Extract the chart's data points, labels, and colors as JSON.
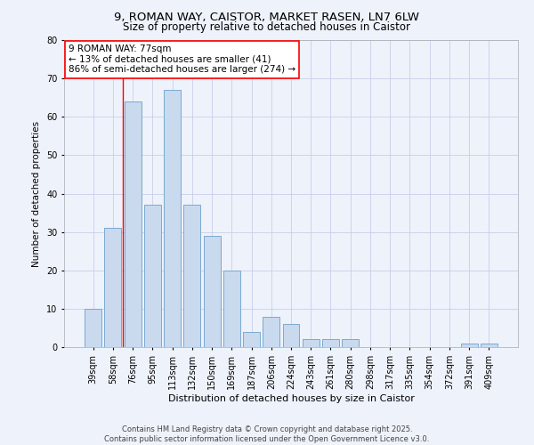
{
  "title_line1": "9, ROMAN WAY, CAISTOR, MARKET RASEN, LN7 6LW",
  "title_line2": "Size of property relative to detached houses in Caistor",
  "xlabel": "Distribution of detached houses by size in Caistor",
  "ylabel": "Number of detached properties",
  "categories": [
    "39sqm",
    "58sqm",
    "76sqm",
    "95sqm",
    "113sqm",
    "132sqm",
    "150sqm",
    "169sqm",
    "187sqm",
    "206sqm",
    "224sqm",
    "243sqm",
    "261sqm",
    "280sqm",
    "298sqm",
    "317sqm",
    "335sqm",
    "354sqm",
    "372sqm",
    "391sqm",
    "409sqm"
  ],
  "values": [
    10,
    31,
    64,
    37,
    67,
    37,
    29,
    20,
    4,
    8,
    6,
    2,
    2,
    2,
    0,
    0,
    0,
    0,
    0,
    1,
    1
  ],
  "bar_color": "#c9d9ee",
  "bar_edge_color": "#7aaad0",
  "ylim": [
    0,
    80
  ],
  "yticks": [
    0,
    10,
    20,
    30,
    40,
    50,
    60,
    70,
    80
  ],
  "subject_bin_index": 2,
  "annotation_line1": "9 ROMAN WAY: 77sqm",
  "annotation_line2": "← 13% of detached houses are smaller (41)",
  "annotation_line3": "86% of semi-detached houses are larger (274) →",
  "footer_line1": "Contains HM Land Registry data © Crown copyright and database right 2025.",
  "footer_line2": "Contains public sector information licensed under the Open Government Licence v3.0.",
  "background_color": "#eef2fb",
  "plot_bg_color": "#eef2fb",
  "grid_color": "#c8d0e8",
  "title1_fontsize": 9.5,
  "title2_fontsize": 8.5,
  "xlabel_fontsize": 8,
  "ylabel_fontsize": 7.5,
  "tick_fontsize": 7,
  "annotation_fontsize": 7.5,
  "footer_fontsize": 6
}
